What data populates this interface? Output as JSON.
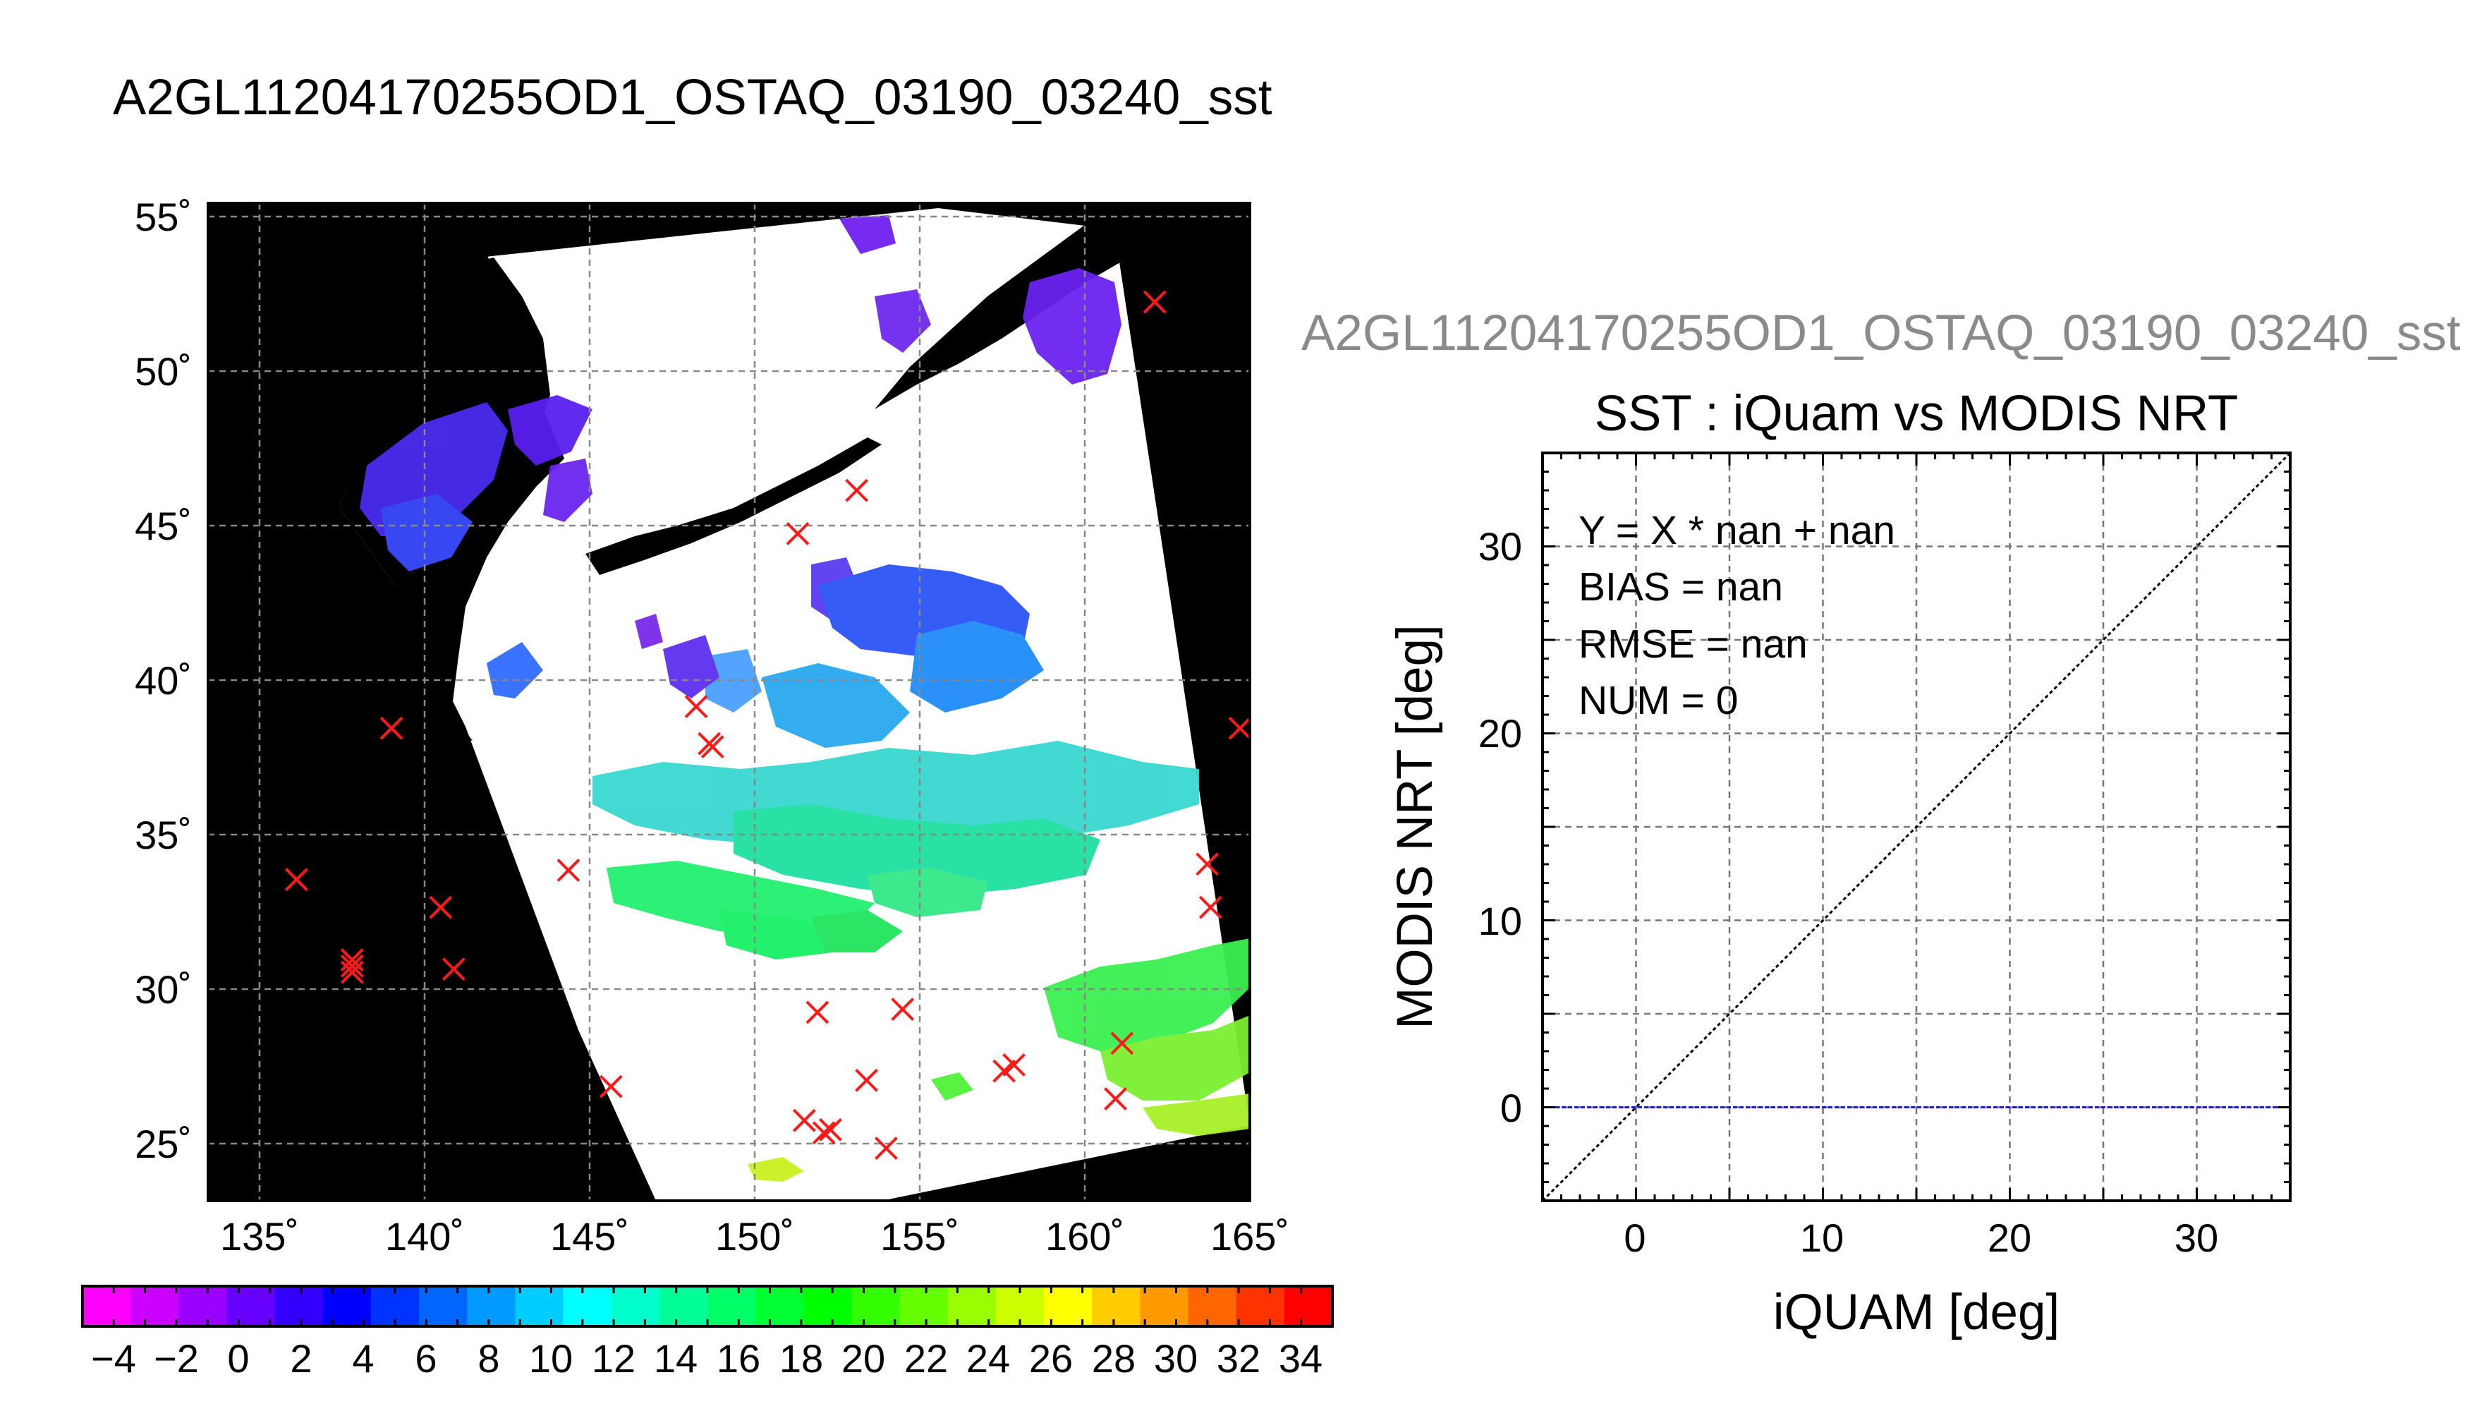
{
  "main_title": "A2GL11204170255OD1_OSTAQ_03190_03240_sst",
  "map": {
    "lat_labels": [
      "55˚",
      "50˚",
      "45˚",
      "40˚",
      "35˚",
      "30˚",
      "25˚"
    ],
    "lon_labels": [
      "135˚",
      "140˚",
      "145˚",
      "150˚",
      "155˚",
      "160˚",
      "165˚"
    ],
    "lat_range": [
      23.2,
      55.5
    ],
    "lon_range": [
      133.5,
      165.3
    ],
    "marker_color": "#ff1a1a",
    "land_color": "#000000",
    "cloud_color": "#ffffff"
  },
  "colorbar": {
    "labels": [
      "−4",
      "−2",
      "0",
      "2",
      "4",
      "6",
      "8",
      "10",
      "12",
      "14",
      "16",
      "18",
      "20",
      "22",
      "24",
      "26",
      "28",
      "30",
      "32",
      "34"
    ],
    "min": -5,
    "max": 35,
    "step": 2,
    "colors": [
      "#ff00ff",
      "#cc00ff",
      "#9900ff",
      "#6600ff",
      "#3300ff",
      "#0000ff",
      "#0033ff",
      "#0066ff",
      "#0099ff",
      "#00ccff",
      "#00ffff",
      "#00ffcc",
      "#00ff99",
      "#00ff66",
      "#00ff33",
      "#00ff00",
      "#33ff00",
      "#66ff00",
      "#99ff00",
      "#ccff00",
      "#ffff00",
      "#ffcc00",
      "#ff9900",
      "#ff6600",
      "#ff3300",
      "#ff0000"
    ]
  },
  "scatter_subtitle": "A2GL11204170255OD1_OSTAQ_03190_03240_sst",
  "chart_data": {
    "type": "scatter",
    "title": "SST : iQuam vs MODIS NRT",
    "xlabel": "iQUAM [deg]",
    "ylabel": "MODIS NRT [deg]",
    "xlim": [
      -5,
      35
    ],
    "ylim": [
      -5,
      35
    ],
    "xticks": [
      "0",
      "10",
      "20",
      "30"
    ],
    "yticks": [
      "0",
      "10",
      "20",
      "30"
    ],
    "grid": true,
    "points": [],
    "annotations": [
      "Y = X * nan + nan",
      "BIAS = nan",
      "RMSE = nan",
      "NUM = 0"
    ],
    "lines": [
      {
        "type": "one-to-one",
        "style": "dotted",
        "color": "#000000"
      },
      {
        "type": "horizontal",
        "y": 0,
        "style": "dashed",
        "color": "#2020c0"
      }
    ]
  },
  "buoys": [
    {
      "lon": 162.4,
      "lat": 52.3
    },
    {
      "lon": 153.3,
      "lat": 46.2
    },
    {
      "lon": 151.5,
      "lat": 44.8
    },
    {
      "lon": 148.4,
      "lat": 39.2
    },
    {
      "lon": 148.8,
      "lat": 38.0
    },
    {
      "lon": 148.9,
      "lat": 37.9
    },
    {
      "lon": 139.1,
      "lat": 38.5
    },
    {
      "lon": 165.0,
      "lat": 38.5
    },
    {
      "lon": 164.0,
      "lat": 34.1
    },
    {
      "lon": 164.1,
      "lat": 32.7
    },
    {
      "lon": 136.2,
      "lat": 33.6
    },
    {
      "lon": 140.6,
      "lat": 32.7
    },
    {
      "lon": 144.5,
      "lat": 33.9
    },
    {
      "lon": 137.9,
      "lat": 31.0
    },
    {
      "lon": 137.9,
      "lat": 30.8
    },
    {
      "lon": 137.9,
      "lat": 30.6
    },
    {
      "lon": 141.0,
      "lat": 30.7
    },
    {
      "lon": 152.1,
      "lat": 29.3
    },
    {
      "lon": 154.7,
      "lat": 29.4
    },
    {
      "lon": 145.8,
      "lat": 26.9
    },
    {
      "lon": 153.6,
      "lat": 27.1
    },
    {
      "lon": 157.8,
      "lat": 27.4
    },
    {
      "lon": 158.1,
      "lat": 27.6
    },
    {
      "lon": 161.4,
      "lat": 28.3
    },
    {
      "lon": 161.2,
      "lat": 26.5
    },
    {
      "lon": 151.7,
      "lat": 25.8
    },
    {
      "lon": 152.5,
      "lat": 25.5
    },
    {
      "lon": 152.3,
      "lat": 25.4
    },
    {
      "lon": 154.2,
      "lat": 24.9
    }
  ]
}
